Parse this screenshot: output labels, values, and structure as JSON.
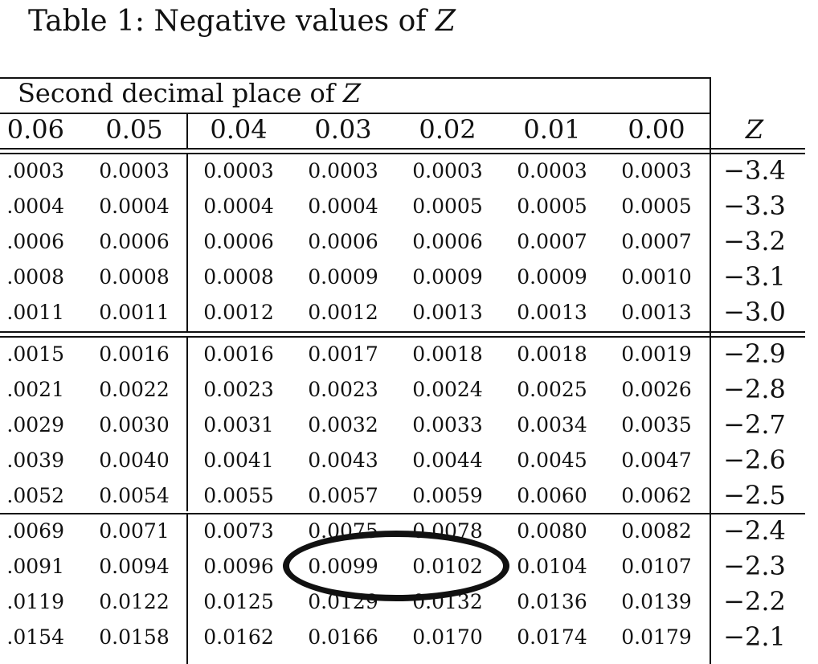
{
  "caption": {
    "prefix": "Table 1: Negative values of ",
    "variable": "Z"
  },
  "table": {
    "span_header": {
      "text": "Second decimal place of ",
      "variable": "Z"
    },
    "columns": [
      "0.06",
      "0.05",
      "0.04",
      "0.03",
      "0.02",
      "0.01",
      "0.00"
    ],
    "z_label": "Z",
    "groups": [
      {
        "rows": [
          {
            "z": "−3.4",
            "values": [
              ".0003",
              "0.0003",
              "0.0003",
              "0.0003",
              "0.0003",
              "0.0003",
              "0.0003"
            ]
          },
          {
            "z": "−3.3",
            "values": [
              ".0004",
              "0.0004",
              "0.0004",
              "0.0004",
              "0.0005",
              "0.0005",
              "0.0005"
            ]
          },
          {
            "z": "−3.2",
            "values": [
              ".0006",
              "0.0006",
              "0.0006",
              "0.0006",
              "0.0006",
              "0.0007",
              "0.0007"
            ]
          },
          {
            "z": "−3.1",
            "values": [
              ".0008",
              "0.0008",
              "0.0008",
              "0.0009",
              "0.0009",
              "0.0009",
              "0.0010"
            ]
          },
          {
            "z": "−3.0",
            "values": [
              ".0011",
              "0.0011",
              "0.0012",
              "0.0012",
              "0.0013",
              "0.0013",
              "0.0013"
            ]
          }
        ]
      },
      {
        "rows": [
          {
            "z": "−2.9",
            "values": [
              ".0015",
              "0.0016",
              "0.0016",
              "0.0017",
              "0.0018",
              "0.0018",
              "0.0019"
            ]
          },
          {
            "z": "−2.8",
            "values": [
              ".0021",
              "0.0022",
              "0.0023",
              "0.0023",
              "0.0024",
              "0.0025",
              "0.0026"
            ]
          },
          {
            "z": "−2.7",
            "values": [
              ".0029",
              "0.0030",
              "0.0031",
              "0.0032",
              "0.0033",
              "0.0034",
              "0.0035"
            ]
          },
          {
            "z": "−2.6",
            "values": [
              ".0039",
              "0.0040",
              "0.0041",
              "0.0043",
              "0.0044",
              "0.0045",
              "0.0047"
            ]
          },
          {
            "z": "−2.5",
            "values": [
              ".0052",
              "0.0054",
              "0.0055",
              "0.0057",
              "0.0059",
              "0.0060",
              "0.0062"
            ]
          }
        ]
      },
      {
        "rows": [
          {
            "z": "−2.4",
            "values": [
              ".0069",
              "0.0071",
              "0.0073",
              "0.0075",
              "0.0078",
              "0.0080",
              "0.0082"
            ]
          },
          {
            "z": "−2.3",
            "values": [
              ".0091",
              "0.0094",
              "0.0096",
              "0.0099",
              "0.0102",
              "0.0104",
              "0.0107"
            ]
          },
          {
            "z": "−2.2",
            "values": [
              ".0119",
              "0.0122",
              "0.0125",
              "0.0129",
              "0.0132",
              "0.0136",
              "0.0139"
            ]
          },
          {
            "z": "−2.1",
            "values": [
              ".0154",
              "0.0158",
              "0.0162",
              "0.0166",
              "0.0170",
              "0.0174",
              "0.0179"
            ]
          }
        ]
      }
    ]
  }
}
